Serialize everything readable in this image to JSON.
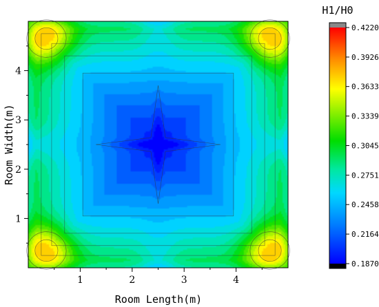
{
  "chart_data": {
    "type": "heatmap",
    "subtype": "filled-contour",
    "title": "",
    "xlabel": "Room Length(m)",
    "ylabel": "Room Width(m)",
    "xlim": [
      0,
      5
    ],
    "ylim": [
      0,
      5
    ],
    "x_ticks": [
      1,
      2,
      3,
      4
    ],
    "y_ticks": [
      1,
      2,
      3,
      4
    ],
    "grid": false,
    "colorbar": {
      "title": "H1/H0",
      "range": [
        0.187,
        0.422
      ],
      "tick_values": [
        0.422,
        0.3926,
        0.3633,
        0.3339,
        0.3045,
        0.2751,
        0.2458,
        0.2164,
        0.187
      ],
      "tick_labels": [
        "0.4220",
        "0.3926",
        "0.3633",
        "0.3339",
        "0.3045",
        "0.2751",
        "0.2458",
        "0.2164",
        "0.1870"
      ],
      "placement": "right",
      "colors": [
        "#000000",
        "#0000ff",
        "#00a0ff",
        "#00e8e8",
        "#00dd00",
        "#c8f000",
        "#ffff00",
        "#ff8800",
        "#ff0000",
        "#888888"
      ]
    },
    "field": {
      "center_value": 0.195,
      "edge_value": 0.3,
      "corner_peak_value": 0.422,
      "corner_peaks": [
        [
          0.35,
          0.35
        ],
        [
          4.65,
          0.35
        ],
        [
          0.35,
          4.65
        ],
        [
          4.65,
          4.65
        ]
      ],
      "star_arms_to": 1.2
    }
  }
}
